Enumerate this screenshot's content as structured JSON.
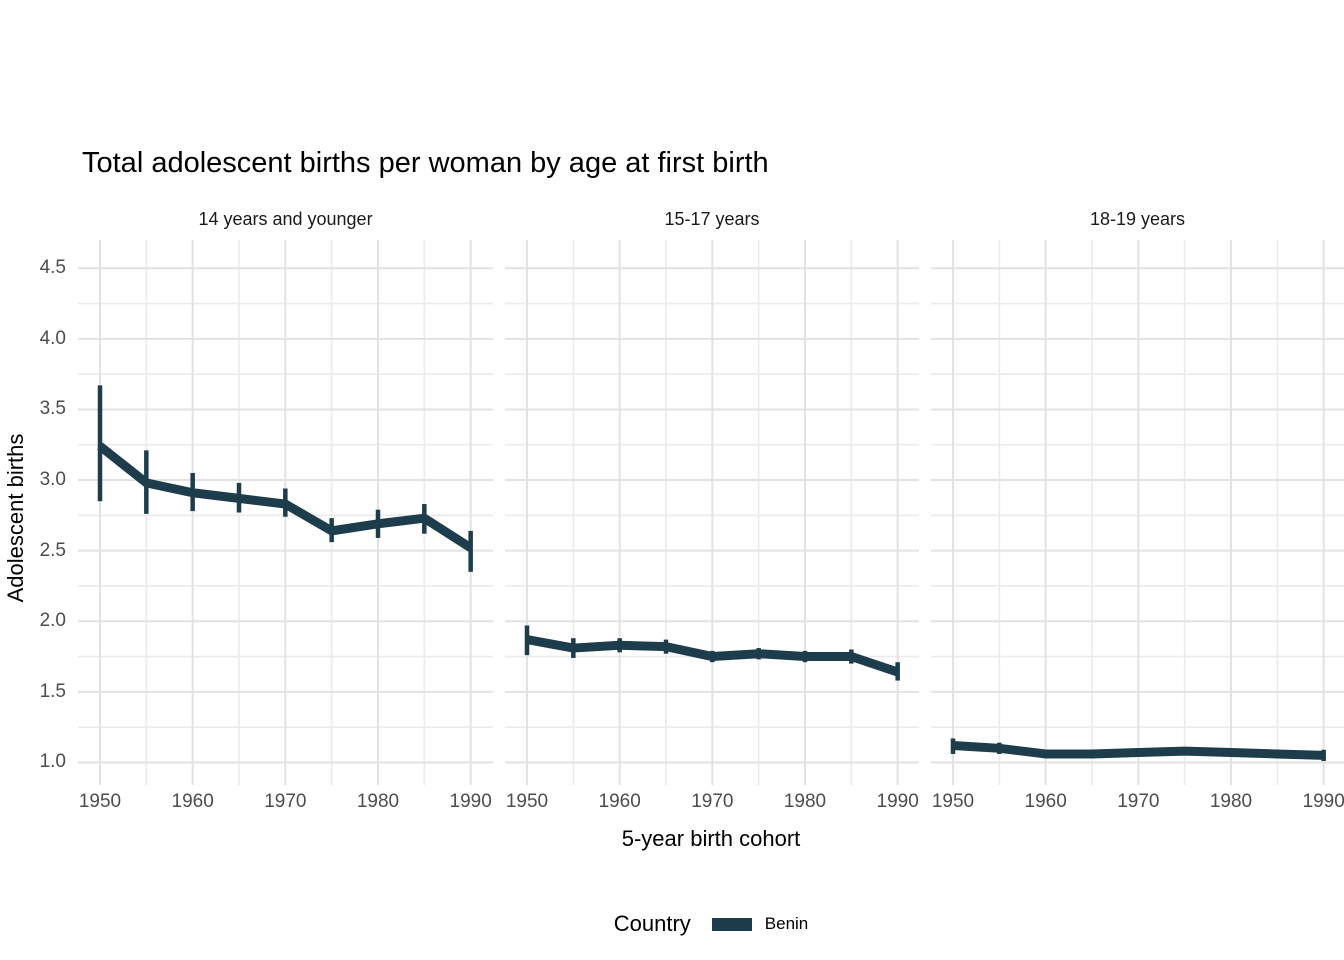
{
  "chart_data": {
    "type": "line",
    "title": "Total adolescent births per woman by age at first birth",
    "xlabel": "5-year birth cohort",
    "ylabel": "Adolescent births",
    "x": [
      1950,
      1955,
      1960,
      1965,
      1970,
      1975,
      1980,
      1985,
      1990
    ],
    "x_ticks": [
      1950,
      1960,
      1970,
      1980,
      1990
    ],
    "x_minor_ticks": [
      1955,
      1965,
      1975,
      1985
    ],
    "y_ticks": [
      1.0,
      1.5,
      2.0,
      2.5,
      3.0,
      3.5,
      4.0,
      4.5
    ],
    "y_minor_ticks": [
      1.25,
      1.75,
      2.25,
      2.75,
      3.25,
      3.75,
      4.25
    ],
    "ylim": [
      0.84,
      4.7
    ],
    "xlim": [
      1947.6,
      1992.4
    ],
    "grid": true,
    "legend": {
      "title": "Country",
      "position": "bottom",
      "entries": [
        {
          "label": "Benin",
          "color": "#1d3d4c"
        }
      ]
    },
    "facets": [
      {
        "label": "14 years and younger",
        "series": [
          {
            "name": "Benin",
            "values": [
              3.24,
              2.98,
              2.91,
              2.87,
              2.83,
              2.64,
              2.69,
              2.73,
              2.52
            ],
            "lower": [
              2.85,
              2.76,
              2.78,
              2.77,
              2.74,
              2.56,
              2.59,
              2.62,
              2.35
            ],
            "upper": [
              3.67,
              3.21,
              3.05,
              2.98,
              2.94,
              2.73,
              2.79,
              2.83,
              2.64
            ]
          }
        ]
      },
      {
        "label": "15-17 years",
        "series": [
          {
            "name": "Benin",
            "values": [
              1.87,
              1.81,
              1.83,
              1.82,
              1.75,
              1.77,
              1.75,
              1.75,
              1.64
            ],
            "lower": [
              1.76,
              1.74,
              1.78,
              1.77,
              1.71,
              1.73,
              1.71,
              1.7,
              1.58
            ],
            "upper": [
              1.97,
              1.88,
              1.88,
              1.87,
              1.79,
              1.81,
              1.79,
              1.8,
              1.71
            ]
          }
        ]
      },
      {
        "label": "18-19 years",
        "series": [
          {
            "name": "Benin",
            "values": [
              1.12,
              1.1,
              1.06,
              1.06,
              1.07,
              1.08,
              1.07,
              1.06,
              1.05
            ],
            "lower": [
              1.06,
              1.06,
              1.03,
              1.03,
              1.04,
              1.05,
              1.04,
              1.03,
              1.01
            ],
            "upper": [
              1.17,
              1.14,
              1.09,
              1.09,
              1.1,
              1.11,
              1.1,
              1.09,
              1.09
            ]
          }
        ]
      }
    ],
    "style": {
      "background": "#ffffff",
      "grid_major_color": "#e2e2e2",
      "grid_minor_color": "#ebebeb",
      "tick_label_color": "#4d4d4d",
      "text_color": "#000000",
      "line_color": "#1d3d4c"
    }
  }
}
